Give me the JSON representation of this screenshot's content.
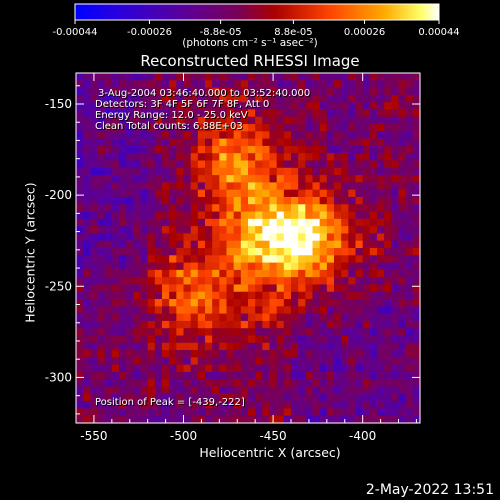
{
  "window": {
    "timestamp": "2-May-2022 13:51"
  },
  "colorbar": {
    "tick_labels": [
      "-0.00044",
      "-0.00026",
      "-8.8e-05",
      "8.8e-05",
      "0.00026",
      "0.00044"
    ],
    "tick_values": [
      -0.00044,
      -0.00026,
      -8.8e-05,
      8.8e-05,
      0.00026,
      0.00044
    ],
    "range": [
      -0.00044,
      0.00044
    ],
    "units_label": "(photons cm⁻² s⁻¹ asec⁻²)",
    "colors": [
      "#0000ff",
      "#3300cc",
      "#660099",
      "#880066",
      "#aa0022",
      "#cc2200",
      "#ff6600",
      "#ffb000",
      "#ffff80",
      "#ffffff"
    ]
  },
  "chart_data": {
    "type": "heatmap",
    "title": "Reconstructed RHESSI Image",
    "xlabel": "Heliocentric X (arcsec)",
    "ylabel": "Heliocentric Y (arcsec)",
    "xlim": [
      -560,
      -368
    ],
    "ylim": [
      -325,
      -133
    ],
    "x_ticks": [
      -550,
      -500,
      -450,
      -400
    ],
    "y_ticks": [
      -300,
      -250,
      -200,
      -150
    ],
    "x_tick_labels": [
      "-550",
      "-500",
      "-450",
      "-400"
    ],
    "y_tick_labels": [
      "-300",
      "-250",
      "-200",
      "-150"
    ],
    "annotations": [
      "3-Aug-2004 03:46:40.000 to 03:52:40.000",
      "Detectors: 3F 4F 5F 6F 7F 8F, Att 0",
      "Energy Range: 12.0 - 25.0 keV",
      "Clean     Total counts: 6.88E+03"
    ],
    "peak_label": "Position of Peak = [-439,-222]",
    "peak": [
      -439,
      -222
    ]
  }
}
